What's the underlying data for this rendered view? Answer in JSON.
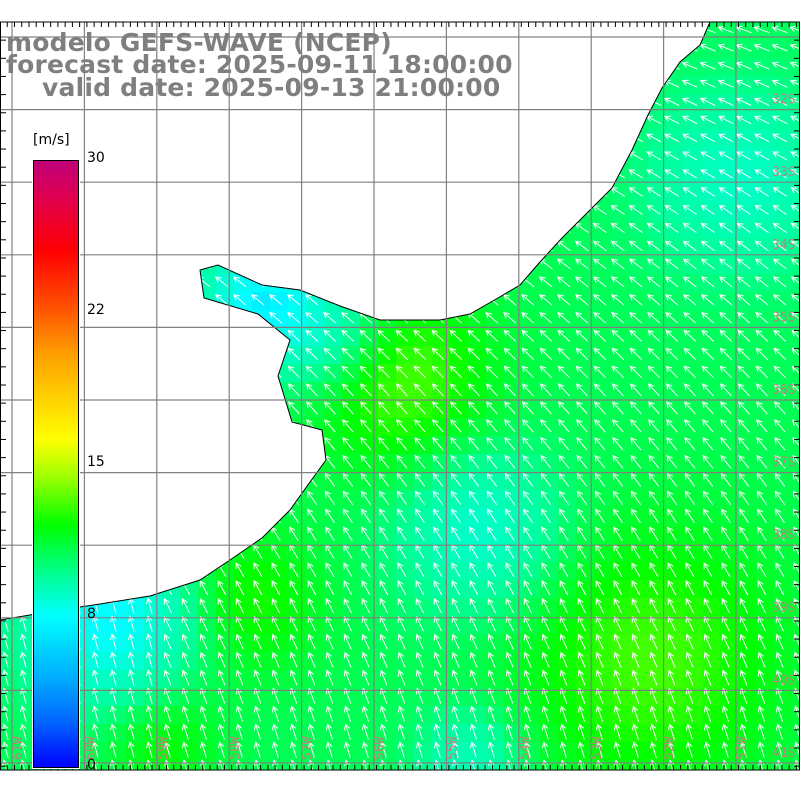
{
  "title": {
    "model": "modelo GEFS-WAVE (NCEP)",
    "forecast": "forecast date: 2025-09-11 18:00:00",
    "valid": "valid date: 2025-09-13 21:00:00"
  },
  "colorbar": {
    "unit": "[m/s]",
    "ticks": [
      "30",
      "22",
      "15",
      "8",
      "0"
    ],
    "colors": [
      "#c0007a",
      "#ff0000",
      "#ffa000",
      "#ffff00",
      "#00ff00",
      "#00ffff",
      "#0000ff"
    ]
  },
  "axes": {
    "latitudes": [
      "32S",
      "33S",
      "34S",
      "35S",
      "36S",
      "37S",
      "38S",
      "39S",
      "40S",
      "41S"
    ],
    "longitudes": [
      "61W",
      "60W",
      "59W",
      "58W",
      "57W",
      "56W",
      "55W",
      "54W",
      "53W",
      "52W",
      "51W"
    ]
  },
  "colors": {
    "land": "#ffffff",
    "coast": "#000000",
    "grid": "#808080",
    "arrow": "#ffffff"
  }
}
